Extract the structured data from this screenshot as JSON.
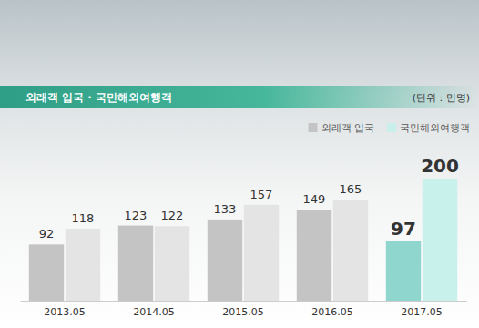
{
  "chart_data": {
    "type": "bar",
    "title": "외래객 입국 · 국민해외여행객",
    "subtitle": "(단위 : 만명)",
    "categories": [
      "2013.05",
      "2014.05",
      "2015.05",
      "2016.05",
      "2017.05"
    ],
    "series": [
      {
        "name": "외래객 입국",
        "color": "#c4c4c4",
        "colors": [
          "#c4c4c4",
          "#c4c4c4",
          "#c4c4c4",
          "#c4c4c4",
          "#8fd6cf"
        ],
        "values": [
          92,
          123,
          133,
          149,
          97
        ]
      },
      {
        "name": "국민해외여행객",
        "color": "#c8efea",
        "colors": [
          "#e4e4e4",
          "#e4e4e4",
          "#e4e4e4",
          "#e4e4e4",
          "#c8f1ec"
        ],
        "values": [
          118,
          122,
          157,
          165,
          200
        ]
      }
    ],
    "data_labels": true,
    "legend": "top-right",
    "tick_labels": "x",
    "grid": false
  }
}
